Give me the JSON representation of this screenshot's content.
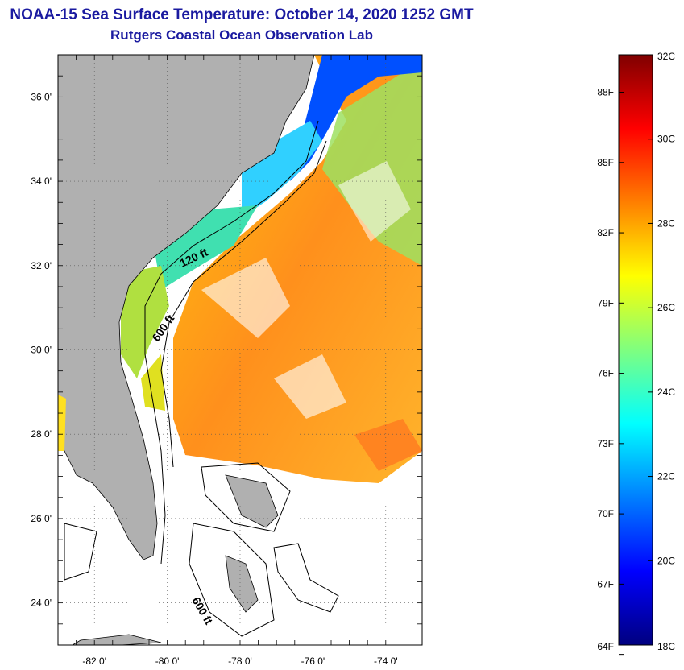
{
  "header": {
    "title": "NOAA-15 Sea Surface Temperature:  October 14, 2020 1252 GMT",
    "subtitle": "Rutgers Coastal Ocean Observation Lab"
  },
  "map": {
    "lon_range": [
      -83,
      -73
    ],
    "lat_range": [
      23,
      37
    ],
    "lon_ticks": [
      {
        "value": -82,
        "label": "-82 0'"
      },
      {
        "value": -80,
        "label": "-80 0'"
      },
      {
        "value": -78,
        "label": "-78 0'"
      },
      {
        "value": -76,
        "label": "-76 0'"
      },
      {
        "value": -74,
        "label": "-74 0'"
      }
    ],
    "lat_ticks": [
      {
        "value": 36,
        "label": "36 0'"
      },
      {
        "value": 34,
        "label": "34 0'"
      },
      {
        "value": 32,
        "label": "32 0'"
      },
      {
        "value": 30,
        "label": "30 0'"
      },
      {
        "value": 28,
        "label": "28 0'"
      },
      {
        "value": 26,
        "label": "26 0'"
      },
      {
        "value": 24,
        "label": "24 0'"
      }
    ],
    "contour_labels": [
      "120 ft",
      "600 ft",
      "600 ft"
    ],
    "colors": {
      "land": "#b0b0b0",
      "no_data": "#ffffff",
      "grid": "#666666"
    }
  },
  "colorbar": {
    "min_c": 18,
    "max_c": 32,
    "celsius_labels": [
      {
        "value": 32,
        "label": "32C"
      },
      {
        "value": 30,
        "label": "30C"
      },
      {
        "value": 28,
        "label": "28C"
      },
      {
        "value": 26,
        "label": "26C"
      },
      {
        "value": 24,
        "label": "24C"
      },
      {
        "value": 22,
        "label": "22C"
      },
      {
        "value": 20,
        "label": "20C"
      },
      {
        "value": 18,
        "label": "18C"
      }
    ],
    "fahrenheit_labels": [
      {
        "value": 88,
        "label": "88F"
      },
      {
        "value": 85,
        "label": "85F"
      },
      {
        "value": 82,
        "label": "82F"
      },
      {
        "value": 79,
        "label": "79F"
      },
      {
        "value": 76,
        "label": "76F"
      },
      {
        "value": 73,
        "label": "73F"
      },
      {
        "value": 70,
        "label": "70F"
      },
      {
        "value": 67,
        "label": "67F"
      },
      {
        "value": 64,
        "label": "64F"
      }
    ],
    "gradient": [
      "#00007f",
      "#0000ff",
      "#007fff",
      "#00ffff",
      "#7fff7f",
      "#ffff00",
      "#ff7f00",
      "#ff0000",
      "#7f0000"
    ]
  }
}
